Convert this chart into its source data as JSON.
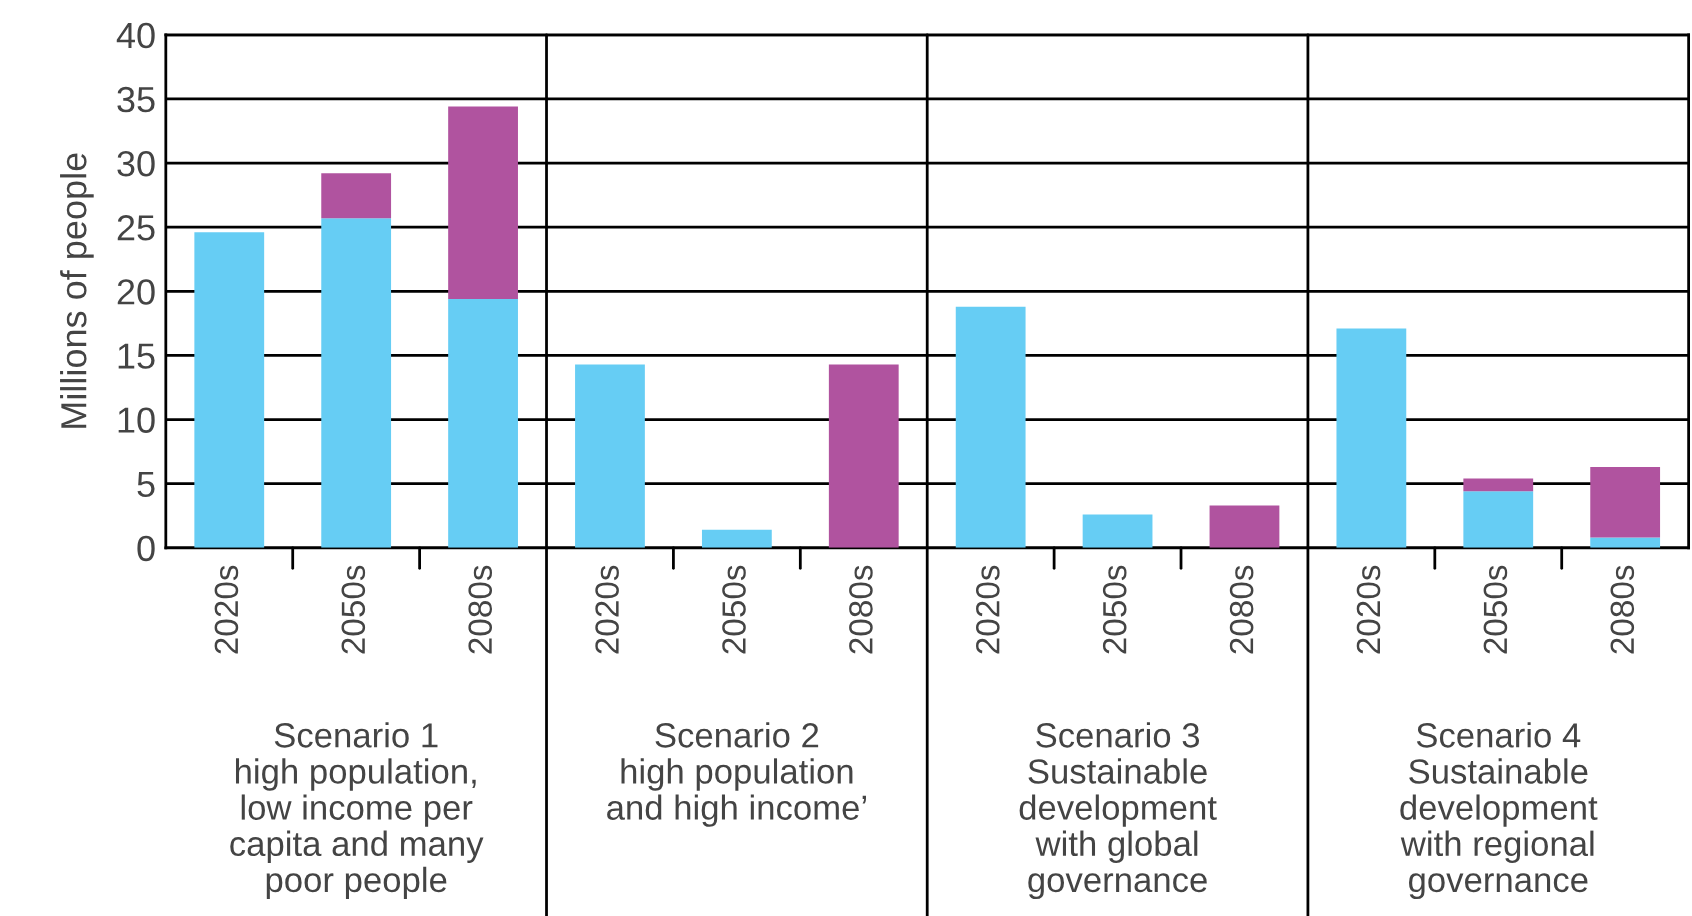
{
  "chart_data": {
    "type": "bar",
    "stacked": true,
    "categories": [
      "2020s",
      "2050s",
      "2080s",
      "2020s",
      "2050s",
      "2080s",
      "2020s",
      "2050s",
      "2080s",
      "2020s",
      "2050s",
      "2080s"
    ],
    "ylabel": "Millions of people",
    "ylim": [
      0,
      40
    ],
    "yticks": [
      0,
      5,
      10,
      15,
      20,
      25,
      30,
      35,
      40
    ],
    "grid": "y",
    "series": [
      {
        "color": "#66cdf4",
        "values": [
          24.6,
          25.7,
          19.4,
          14.3,
          1.4,
          null,
          18.8,
          2.6,
          null,
          17.1,
          4.4,
          0.8
        ]
      },
      {
        "color": "#b0539f",
        "values": [
          null,
          3.5,
          15.0,
          null,
          null,
          14.3,
          null,
          null,
          3.3,
          null,
          1.0,
          5.5
        ]
      }
    ],
    "annotations": [
      "Scenario 1\nhigh population,\nlow income per\ncapita and many\npoor people",
      "Scenario 2\nhigh population\nand high income’",
      "Scenario 3\nSustainable\ndevelopment\nwith global\ngovernance",
      "Scenario 4\nSustainable\ndevelopment\nwith regional\ngovernance"
    ]
  }
}
